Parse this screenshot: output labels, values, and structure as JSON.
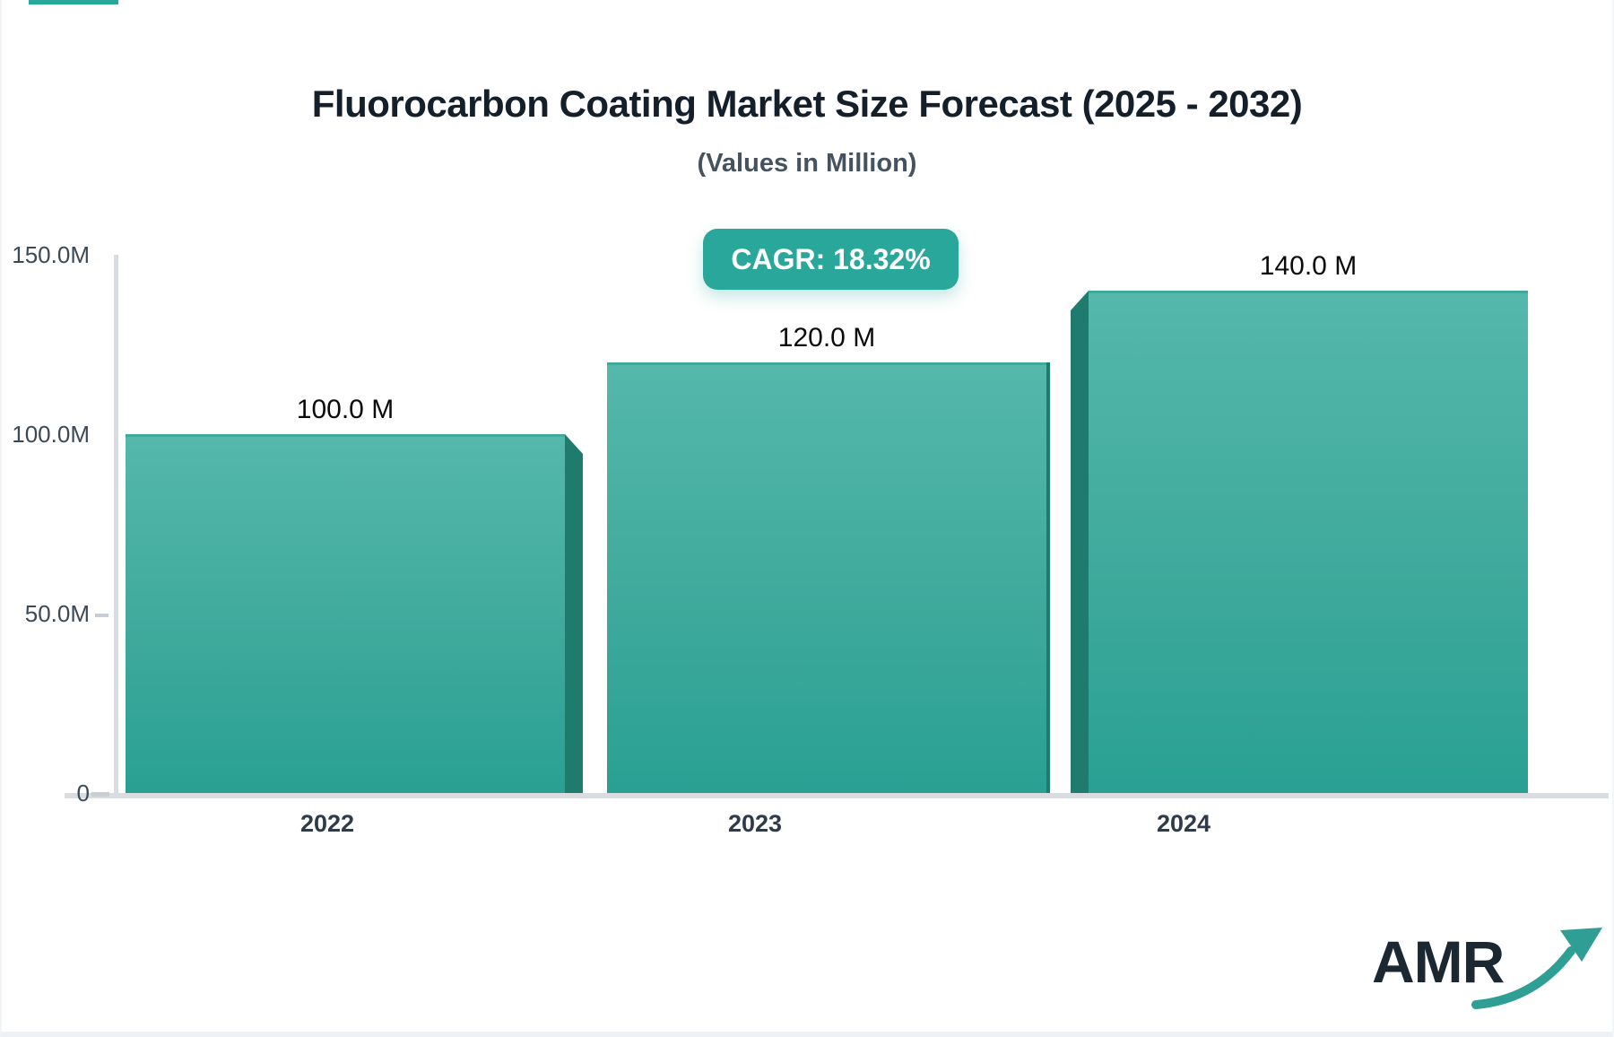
{
  "page": {
    "background_color": "#ffffff",
    "accent_color": "#2aa79b"
  },
  "header": {
    "title": "Fluorocarbon Coating Market Size Forecast (2025 - 2032)",
    "subtitle": "(Values in Million)"
  },
  "cagr_badge": {
    "label": "CAGR: 18.32%",
    "bg_color": "#2aa79b",
    "text_color": "#ffffff"
  },
  "chart_data": {
    "type": "bar",
    "title": "Fluorocarbon Coating Market Size Forecast (2025 - 2032)",
    "subtitle": "(Values in Million)",
    "unit": "Million",
    "cagr_percent": 18.32,
    "categories": [
      "2022",
      "2023",
      "2024"
    ],
    "values": [
      100.0,
      120.0,
      140.0
    ],
    "value_labels": [
      "100.0 M",
      "120.0 M",
      "140.0 M"
    ],
    "ylim": [
      0,
      150
    ],
    "yticks": [
      "0",
      "50.0M",
      "100.0M",
      "150.0M"
    ],
    "grid": false,
    "legend": false,
    "bar_color_top": "#54b8ab",
    "bar_color_bottom": "#29a093",
    "bar_side_color": "#1f7b6e",
    "axis_color": "#d9dde2",
    "tick_label_color": "#3d4956"
  },
  "logo": {
    "text": "AMR",
    "text_color": "#1b2831",
    "arrow_color": "#2f9e94"
  }
}
